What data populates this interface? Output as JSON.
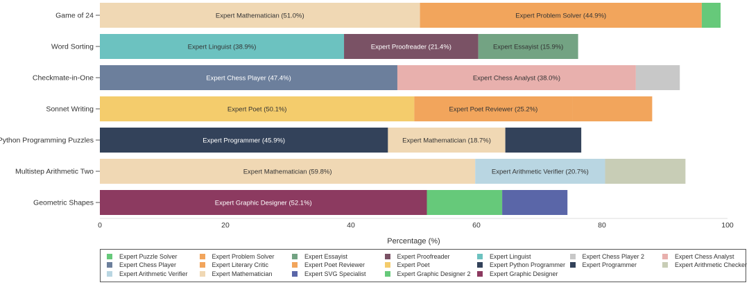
{
  "chart_data": {
    "type": "bar",
    "orientation": "horizontal",
    "stacked": true,
    "xlabel": "Percentage (%)",
    "xlim": [
      0,
      100
    ],
    "xticks": [
      0,
      20,
      40,
      60,
      80,
      100
    ],
    "categories": [
      "Game of 24",
      "Word Sorting",
      "Checkmate-in-One",
      "Sonnet Writing",
      "Python Programming Puzzles",
      "Multistep Arithmetic Two",
      "Geometric Shapes"
    ],
    "rows": [
      {
        "category": "Game of 24",
        "segments": [
          {
            "name": "Expert Mathematician",
            "value": 51.0,
            "label": "Expert Mathematician (51.0%)"
          },
          {
            "name": "Expert Problem Solver",
            "value": 44.9,
            "label": "Expert Problem Solver (44.9%)"
          },
          {
            "name": "Expert Puzzle Solver",
            "value": 3.0,
            "label": ""
          }
        ]
      },
      {
        "category": "Word Sorting",
        "segments": [
          {
            "name": "Expert Linguist",
            "value": 38.9,
            "label": "Expert Linguist (38.9%)"
          },
          {
            "name": "Expert Proofreader",
            "value": 21.4,
            "label": "Expert Proofreader (21.4%)"
          },
          {
            "name": "Expert Essayist",
            "value": 15.9,
            "label": "Expert Essayist (15.9%)"
          }
        ]
      },
      {
        "category": "Checkmate-in-One",
        "segments": [
          {
            "name": "Expert Chess Player",
            "value": 47.4,
            "label": "Expert Chess Player (47.4%)"
          },
          {
            "name": "Expert Chess Analyst",
            "value": 38.0,
            "label": "Expert Chess Analyst (38.0%)"
          },
          {
            "name": "Expert Chess Player 2",
            "value": 7.0,
            "label": ""
          }
        ]
      },
      {
        "category": "Sonnet Writing",
        "segments": [
          {
            "name": "Expert Poet",
            "value": 50.1,
            "label": "Expert Poet (50.1%)"
          },
          {
            "name": "Expert Poet Reviewer",
            "value": 25.2,
            "label": "Expert Poet Reviewer (25.2%)"
          },
          {
            "name": "Expert Literary Critic",
            "value": 12.7,
            "label": ""
          }
        ]
      },
      {
        "category": "Python Programming Puzzles",
        "segments": [
          {
            "name": "Expert Programmer",
            "value": 45.9,
            "label": "Expert Programmer (45.9%)"
          },
          {
            "name": "Expert Mathematician",
            "value": 18.7,
            "label": "Expert Mathematician (18.7%)"
          },
          {
            "name": "Expert Python Programmer",
            "value": 12.1,
            "label": ""
          }
        ]
      },
      {
        "category": "Multistep Arithmetic Two",
        "segments": [
          {
            "name": "Expert Mathematician",
            "value": 59.8,
            "label": "Expert Mathematician (59.8%)"
          },
          {
            "name": "Expert Arithmetic Verifier",
            "value": 20.7,
            "label": "Expert Arithmetic Verifier (20.7%)"
          },
          {
            "name": "Expert Arithmetic Checker",
            "value": 12.8,
            "label": ""
          }
        ]
      },
      {
        "category": "Geometric Shapes",
        "segments": [
          {
            "name": "Expert Graphic Designer",
            "value": 52.1,
            "label": "Expert Graphic Designer (52.1%)"
          },
          {
            "name": "Expert Graphic Designer 2",
            "value": 12.0,
            "label": ""
          },
          {
            "name": "Expert SVG Specialist",
            "value": 10.4,
            "label": ""
          }
        ]
      }
    ],
    "legend": [
      {
        "name": "Expert Puzzle Solver",
        "color": "#66c97a"
      },
      {
        "name": "Expert Problem Solver",
        "color": "#f2a55c"
      },
      {
        "name": "Expert Essayist",
        "color": "#73a383"
      },
      {
        "name": "Expert Proofreader",
        "color": "#7a5265"
      },
      {
        "name": "Expert Linguist",
        "color": "#6cc2c0"
      },
      {
        "name": "Expert Chess Player 2",
        "color": "#c8c8c8"
      },
      {
        "name": "Expert Chess Analyst",
        "color": "#e8b0ad"
      },
      {
        "name": "Expert Chess Player",
        "color": "#6c7f9c"
      },
      {
        "name": "Expert Literary Critic",
        "color": "#f2a55c"
      },
      {
        "name": "Expert Poet Reviewer",
        "color": "#f2a55c"
      },
      {
        "name": "Expert Poet",
        "color": "#f4cc6c"
      },
      {
        "name": "Expert Python Programmer",
        "color": "#33425a"
      },
      {
        "name": "Expert Programmer",
        "color": "#33425a"
      },
      {
        "name": "Expert Arithmetic Checker",
        "color": "#c8cdb6"
      },
      {
        "name": "Expert Arithmetic Verifier",
        "color": "#b9d6e2"
      },
      {
        "name": "Expert Mathematician",
        "color": "#f0d8b4"
      },
      {
        "name": "Expert SVG Specialist",
        "color": "#5a66a8"
      },
      {
        "name": "Expert Graphic Designer 2",
        "color": "#66c97a"
      },
      {
        "name": "Expert Graphic Designer",
        "color": "#8c3a60"
      }
    ]
  }
}
